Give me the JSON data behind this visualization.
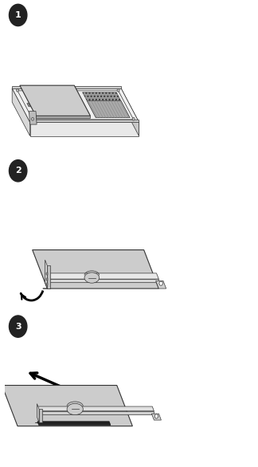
{
  "background_color": "#ffffff",
  "panel_bg": "#ffffff",
  "figure_bg": "#ffffff",
  "border_color": "#000000",
  "step_labels": [
    "1",
    "2",
    "3"
  ],
  "step_label_bg": "#222222",
  "step_label_color": "#ffffff",
  "card_fill": "#c8c8c8",
  "card_edge": "#333333",
  "line_color": "#333333",
  "arrow_color": "#000000",
  "light_gray": "#d8d8d8",
  "mid_gray": "#aaaaaa",
  "dark_gray": "#555555",
  "white": "#ffffff",
  "hatch_gray": "#999999"
}
